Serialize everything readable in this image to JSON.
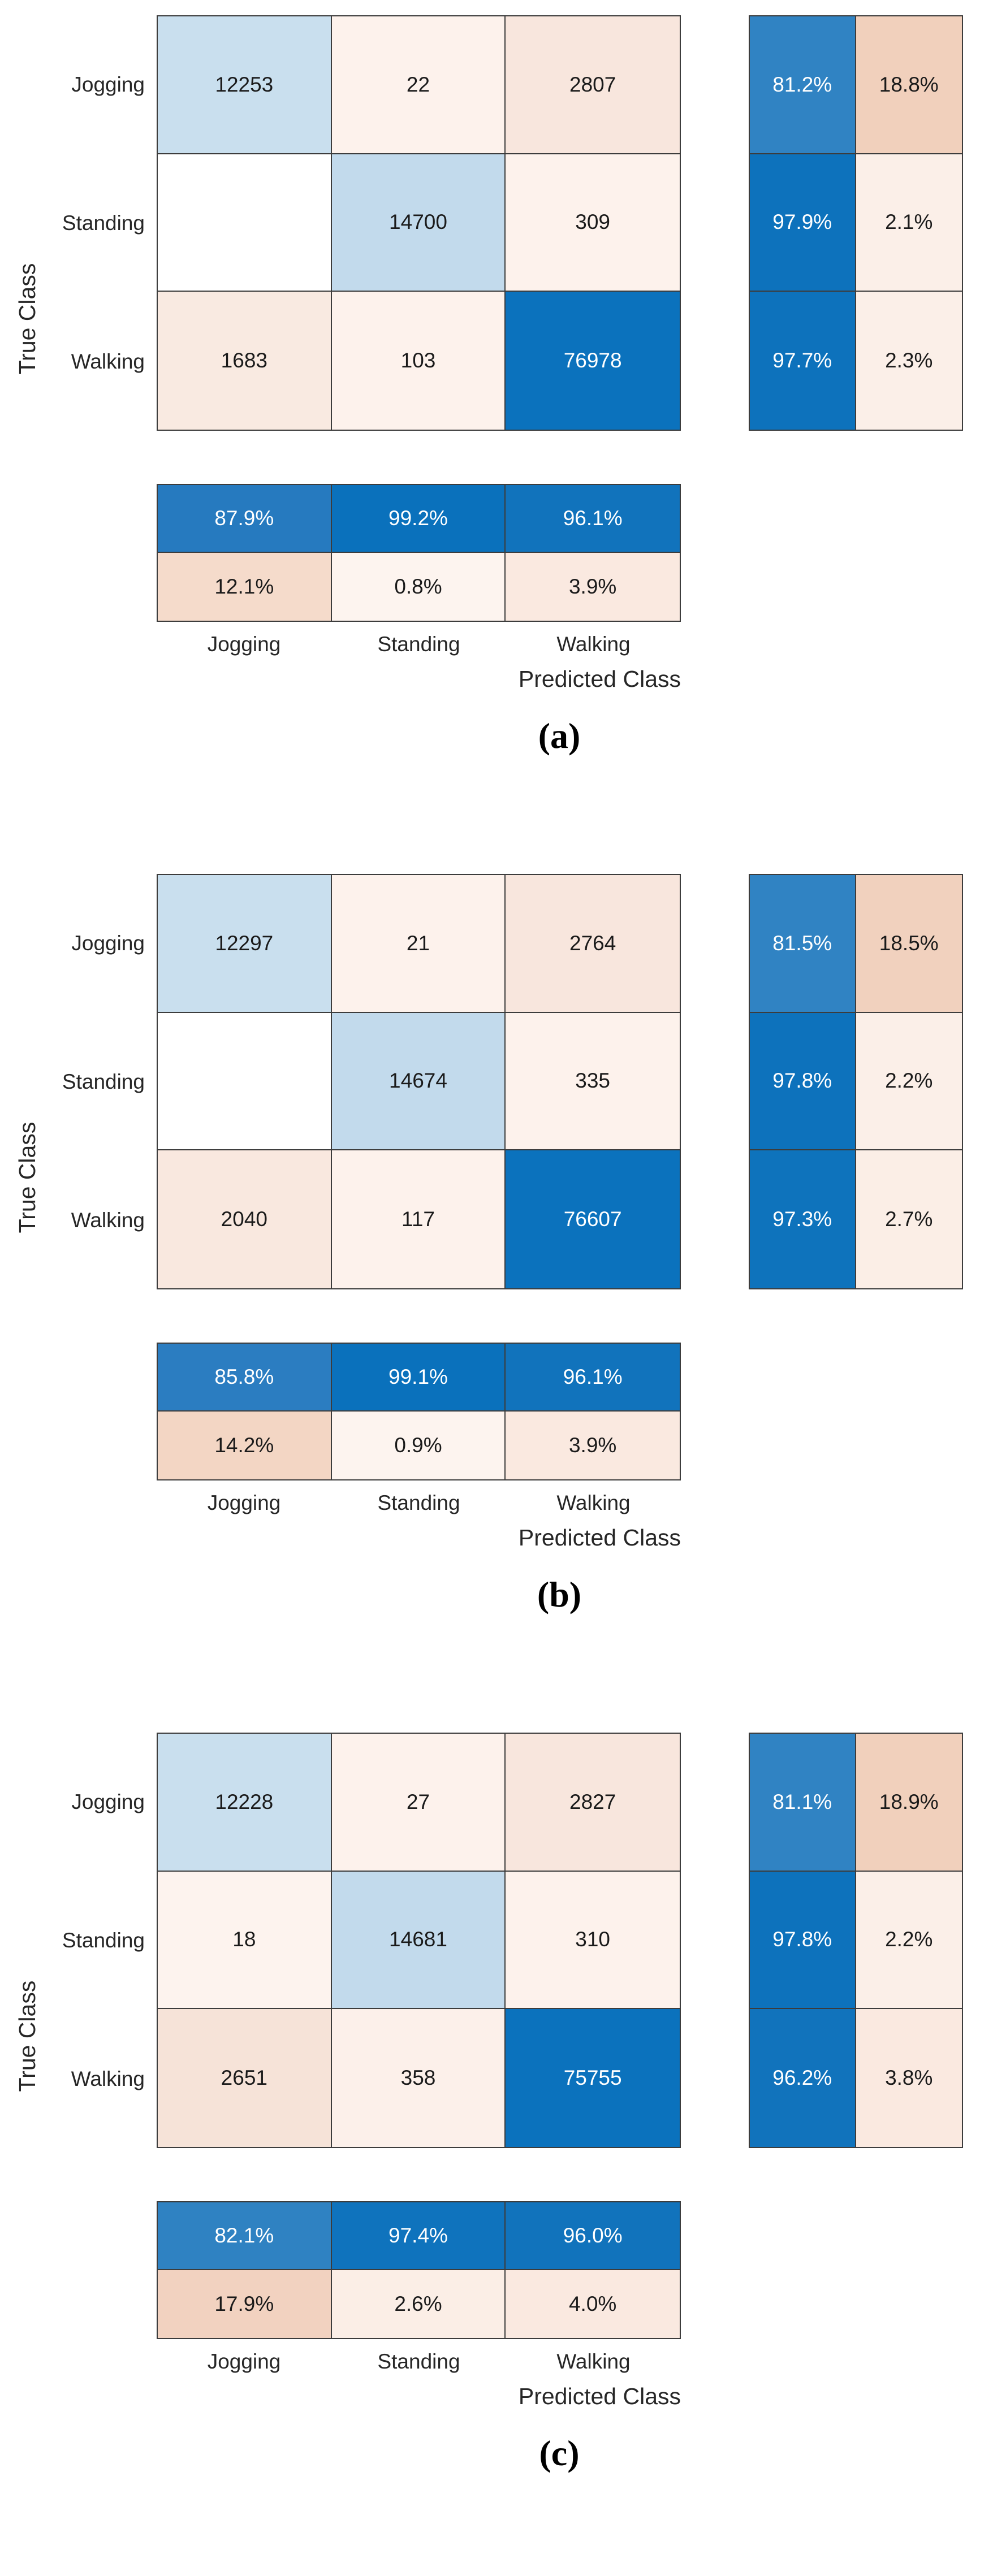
{
  "figure": {
    "axis": {
      "ylabel": "True Class",
      "xlabel": "Predicted Class"
    },
    "tick_labels": [
      "Jogging",
      "Standing",
      "Walking"
    ],
    "palette": {
      "strong_blue": "#0b72bd",
      "medium_blue": "#3083c3",
      "light_blue_diag": "#c4dcec",
      "peach_dark": "#f1d0bc",
      "peach_light": "#fdf2ec",
      "grid_line": "#3c3c3c"
    }
  },
  "panels": [
    {
      "caption": "(a)",
      "matrix": [
        {
          "t": "12253",
          "s": "background:#c9dfee"
        },
        {
          "t": "22",
          "s": "background:#fdf2ec"
        },
        {
          "t": "2807",
          "s": "background:#f8e6dd"
        },
        {
          "t": "",
          "s": "background:#ffffff"
        },
        {
          "t": "14700",
          "s": "background:#c2daec"
        },
        {
          "t": "309",
          "s": "background:#fdf2ec"
        },
        {
          "t": "1683",
          "s": "background:#f9eae1"
        },
        {
          "t": "103",
          "s": "background:#fdf2ec"
        },
        {
          "t": "76978",
          "s": "background:#0b72bd;color:#ffffff"
        }
      ],
      "rowsum": [
        {
          "t": "81.2%",
          "s": "background:#3083c3;color:#ffffff"
        },
        {
          "t": "18.8%",
          "s": "background:#f1d0bc"
        },
        {
          "t": "97.9%",
          "s": "background:#0d72bc;color:#ffffff"
        },
        {
          "t": "2.1%",
          "s": "background:#fbefe8"
        },
        {
          "t": "97.7%",
          "s": "background:#0d72bc;color:#ffffff"
        },
        {
          "t": "2.3%",
          "s": "background:#fbefe8"
        }
      ],
      "colsum": [
        {
          "t": "87.9%",
          "s": "background:#267abf;color:#ffffff"
        },
        {
          "t": "99.2%",
          "s": "background:#0a71bc;color:#ffffff"
        },
        {
          "t": "96.1%",
          "s": "background:#1173bc;color:#ffffff"
        },
        {
          "t": "12.1%",
          "s": "background:#f5dbcb"
        },
        {
          "t": "0.8%",
          "s": "background:#fdf4ef"
        },
        {
          "t": "3.9%",
          "s": "background:#fae9e0"
        }
      ]
    },
    {
      "caption": "(b)",
      "matrix": [
        {
          "t": "12297",
          "s": "background:#c9dfee"
        },
        {
          "t": "21",
          "s": "background:#fdf2ec"
        },
        {
          "t": "2764",
          "s": "background:#f8e6dd"
        },
        {
          "t": "",
          "s": "background:#ffffff"
        },
        {
          "t": "14674",
          "s": "background:#c2daec"
        },
        {
          "t": "335",
          "s": "background:#fdf2ec"
        },
        {
          "t": "2040",
          "s": "background:#f9e8df"
        },
        {
          "t": "117",
          "s": "background:#fdf2ec"
        },
        {
          "t": "76607",
          "s": "background:#0b72bd;color:#ffffff"
        }
      ],
      "rowsum": [
        {
          "t": "81.5%",
          "s": "background:#3083c3;color:#ffffff"
        },
        {
          "t": "18.5%",
          "s": "background:#f1d1be"
        },
        {
          "t": "97.8%",
          "s": "background:#0d72bc;color:#ffffff"
        },
        {
          "t": "2.2%",
          "s": "background:#fbefe8"
        },
        {
          "t": "97.3%",
          "s": "background:#0e73bc;color:#ffffff"
        },
        {
          "t": "2.7%",
          "s": "background:#fbeee6"
        }
      ],
      "colsum": [
        {
          "t": "85.8%",
          "s": "background:#2b7dc1;color:#ffffff"
        },
        {
          "t": "99.1%",
          "s": "background:#0a71bc;color:#ffffff"
        },
        {
          "t": "96.1%",
          "s": "background:#1173bc;color:#ffffff"
        },
        {
          "t": "14.2%",
          "s": "background:#f3d6c4"
        },
        {
          "t": "0.9%",
          "s": "background:#fdf4ef"
        },
        {
          "t": "3.9%",
          "s": "background:#fae9e0"
        }
      ]
    },
    {
      "caption": "(c)",
      "matrix": [
        {
          "t": "12228",
          "s": "background:#c9dfee"
        },
        {
          "t": "27",
          "s": "background:#fdf2ec"
        },
        {
          "t": "2827",
          "s": "background:#f8e6dd"
        },
        {
          "t": "18",
          "s": "background:#fdf3ee"
        },
        {
          "t": "14681",
          "s": "background:#c2daec"
        },
        {
          "t": "310",
          "s": "background:#fdf2ec"
        },
        {
          "t": "2651",
          "s": "background:#f6e3d8"
        },
        {
          "t": "358",
          "s": "background:#fcf0ea"
        },
        {
          "t": "75755",
          "s": "background:#0b72bd;color:#ffffff"
        }
      ],
      "rowsum": [
        {
          "t": "81.1%",
          "s": "background:#3083c3;color:#ffffff"
        },
        {
          "t": "18.9%",
          "s": "background:#f1d0bc"
        },
        {
          "t": "97.8%",
          "s": "background:#0d72bc;color:#ffffff"
        },
        {
          "t": "2.2%",
          "s": "background:#fbefe8"
        },
        {
          "t": "96.2%",
          "s": "background:#1173bc;color:#ffffff"
        },
        {
          "t": "3.8%",
          "s": "background:#fae9e0"
        }
      ],
      "colsum": [
        {
          "t": "82.1%",
          "s": "background:#2f82c2;color:#ffffff"
        },
        {
          "t": "97.4%",
          "s": "background:#0f73bd;color:#ffffff"
        },
        {
          "t": "96.0%",
          "s": "background:#1173bc;color:#ffffff"
        },
        {
          "t": "17.9%",
          "s": "background:#f2d2c0"
        },
        {
          "t": "2.6%",
          "s": "background:#fbeee6"
        },
        {
          "t": "4.0%",
          "s": "background:#fae9e0"
        }
      ]
    }
  ],
  "chart_data": [
    {
      "type": "heatmap",
      "subtype": "confusion-matrix",
      "panel": "(a)",
      "classes": [
        "Jogging",
        "Standing",
        "Walking"
      ],
      "xlabel": "Predicted Class",
      "ylabel": "True Class",
      "matrix_rows_true_by_predicted": [
        [
          12253,
          22,
          2807
        ],
        [
          null,
          14700,
          309
        ],
        [
          1683,
          103,
          76978
        ]
      ],
      "row_summary_pct": [
        [
          81.2,
          18.8
        ],
        [
          97.9,
          2.1
        ],
        [
          97.7,
          2.3
        ]
      ],
      "col_summary_pct": [
        [
          87.9,
          99.2,
          96.1
        ],
        [
          12.1,
          0.8,
          3.9
        ]
      ],
      "legend_position": "none",
      "grid": true
    },
    {
      "type": "heatmap",
      "subtype": "confusion-matrix",
      "panel": "(b)",
      "classes": [
        "Jogging",
        "Standing",
        "Walking"
      ],
      "xlabel": "Predicted Class",
      "ylabel": "True Class",
      "matrix_rows_true_by_predicted": [
        [
          12297,
          21,
          2764
        ],
        [
          null,
          14674,
          335
        ],
        [
          2040,
          117,
          76607
        ]
      ],
      "row_summary_pct": [
        [
          81.5,
          18.5
        ],
        [
          97.8,
          2.2
        ],
        [
          97.3,
          2.7
        ]
      ],
      "col_summary_pct": [
        [
          85.8,
          99.1,
          96.1
        ],
        [
          14.2,
          0.9,
          3.9
        ]
      ],
      "legend_position": "none",
      "grid": true
    },
    {
      "type": "heatmap",
      "subtype": "confusion-matrix",
      "panel": "(c)",
      "classes": [
        "Jogging",
        "Standing",
        "Walking"
      ],
      "xlabel": "Predicted Class",
      "ylabel": "True Class",
      "matrix_rows_true_by_predicted": [
        [
          12228,
          27,
          2827
        ],
        [
          18,
          14681,
          310
        ],
        [
          2651,
          358,
          75755
        ]
      ],
      "row_summary_pct": [
        [
          81.1,
          18.9
        ],
        [
          97.8,
          2.2
        ],
        [
          96.2,
          3.8
        ]
      ],
      "col_summary_pct": [
        [
          82.1,
          97.4,
          96.0
        ],
        [
          17.9,
          2.6,
          4.0
        ]
      ],
      "legend_position": "none",
      "grid": true
    }
  ]
}
